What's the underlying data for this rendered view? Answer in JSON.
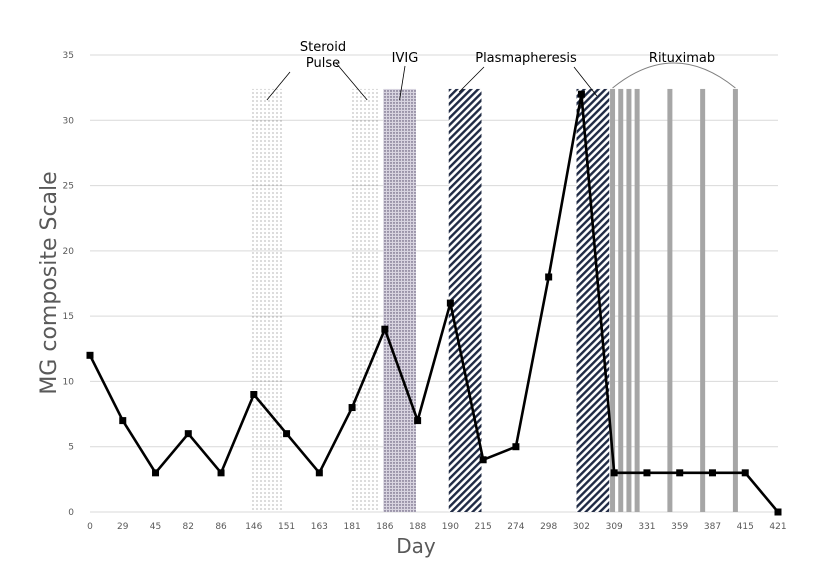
{
  "chart_data": {
    "type": "line",
    "title": "",
    "xlabel": "Day",
    "ylabel": "MG composite Scale",
    "ylim": [
      0,
      35
    ],
    "yticks": [
      0,
      5,
      10,
      15,
      20,
      25,
      30,
      35
    ],
    "grid": true,
    "legend": "none",
    "categories": [
      "0",
      "29",
      "45",
      "82",
      "86",
      "146",
      "151",
      "163",
      "181",
      "186",
      "188",
      "190",
      "215",
      "274",
      "298",
      "302",
      "309",
      "331",
      "359",
      "387",
      "415",
      "421"
    ],
    "series": [
      {
        "name": "MG composite Scale",
        "values": [
          12,
          7,
          3,
          6,
          3,
          9,
          6,
          3,
          8,
          14,
          7,
          16,
          4,
          5,
          18,
          32,
          3,
          3,
          3,
          3,
          3,
          0
        ],
        "color": "#000000"
      }
    ],
    "treatments": [
      {
        "name": "Steroid Pulse",
        "label_lines": [
          "Steroid",
          "Pulse"
        ],
        "pattern": "dots",
        "periods": [
          {
            "from": 4.9,
            "to": 5.9
          },
          {
            "from": 7.95,
            "to": 8.85
          }
        ]
      },
      {
        "name": "IVIG",
        "label_lines": [
          "IVIG"
        ],
        "pattern": "dense-dots",
        "periods": [
          {
            "from": 8.95,
            "to": 9.95
          }
        ]
      },
      {
        "name": "Plasmapheresis",
        "label_lines": [
          "Plasmapheresis"
        ],
        "pattern": "diagonal-stripes",
        "periods": [
          {
            "from": 10.95,
            "to": 11.95
          },
          {
            "from": 14.85,
            "to": 15.85
          }
        ]
      },
      {
        "name": "Rituximab",
        "label_lines": [
          "Rituximab"
        ],
        "pattern": "gray-lines",
        "doses": [
          15.95,
          16.2,
          16.45,
          16.7,
          17.7,
          18.7,
          19.7
        ]
      }
    ],
    "treatment_top_value": 32.4
  }
}
